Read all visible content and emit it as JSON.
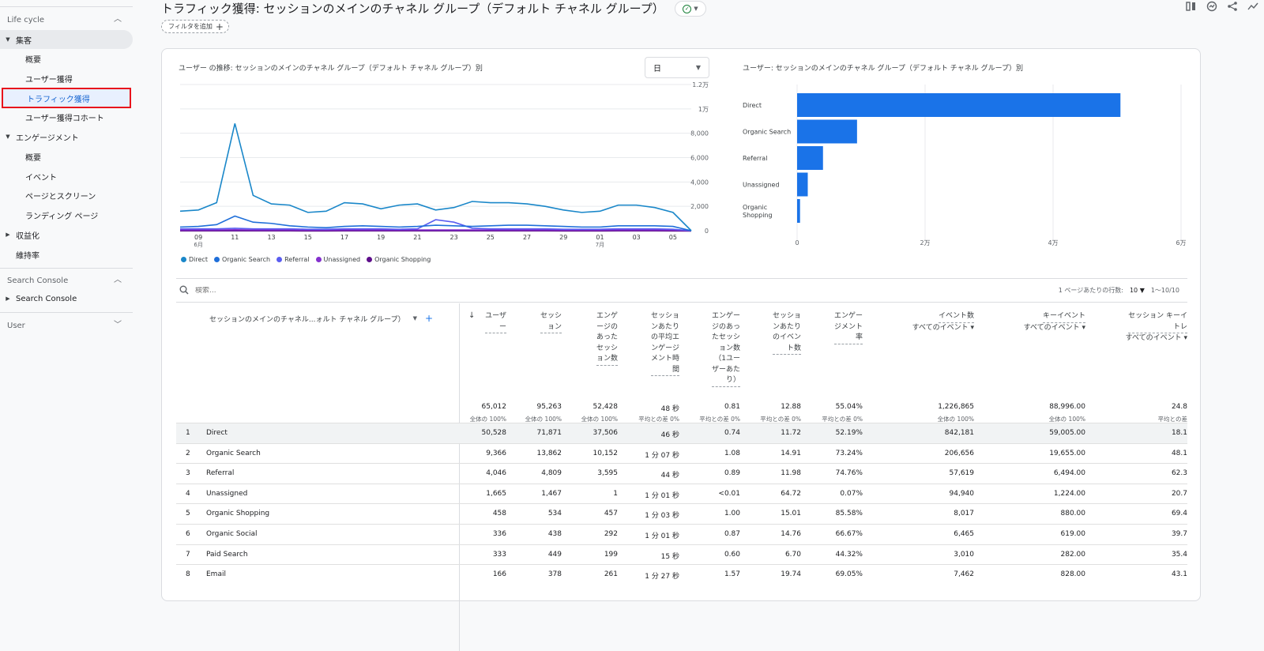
{
  "sidebar": {
    "lifecycle": "Life cycle",
    "acquisition": "集客",
    "acq_items": [
      "概要",
      "ユーザー獲得",
      "トラフィック獲得",
      "ユーザー獲得コホート"
    ],
    "engagement": "エンゲージメント",
    "eng_items": [
      "概要",
      "イベント",
      "ページとスクリーン",
      "ランディング ページ"
    ],
    "monetization": "収益化",
    "retention": "維持率",
    "search_console_section": "Search Console",
    "search_console_item": "Search Console",
    "user_section": "User"
  },
  "header": {
    "title": "トラフィック獲得: セッションのメインのチャネル グループ（デフォルト チャネル グループ）",
    "filter_chip": "フィルタを追加"
  },
  "line_chart_title": "ユーザー の推移: セッションのメインのチャネル グループ（デフォルト チャネル グループ）別",
  "day_select": "日",
  "bar_chart_title": "ユーザー: セッションのメインのチャネル グループ（デフォルト チャネル グループ）別",
  "chart_data": [
    {
      "type": "line",
      "x_tick_labels": [
        "09",
        "11",
        "13",
        "15",
        "17",
        "19",
        "21",
        "23",
        "25",
        "27",
        "29",
        "01",
        "03",
        "05"
      ],
      "x_sub_labels": {
        "09": "6月",
        "01": "7月"
      },
      "y_tick_labels": [
        "1.2万",
        "1万",
        "8,000",
        "6,000",
        "4,000",
        "2,000",
        "0"
      ],
      "ylim": [
        0,
        12000
      ],
      "series": [
        {
          "name": "Direct",
          "color": "#1a87c9",
          "values": [
            1600,
            1700,
            2300,
            8800,
            2900,
            2200,
            2100,
            1500,
            1600,
            2300,
            2200,
            1800,
            2100,
            2200,
            1700,
            1900,
            2400,
            2300,
            2300,
            2200,
            2000,
            1700,
            1500,
            1600,
            2100,
            2100,
            1900,
            1500,
            0
          ]
        },
        {
          "name": "Organic Search",
          "color": "#1f6fd9",
          "values": [
            300,
            350,
            500,
            1200,
            700,
            600,
            400,
            300,
            250,
            350,
            400,
            350,
            300,
            350,
            450,
            400,
            350,
            400,
            450,
            450,
            400,
            350,
            300,
            300,
            400,
            400,
            400,
            350,
            0
          ]
        },
        {
          "name": "Referral",
          "color": "#5a5df0",
          "values": [
            150,
            150,
            150,
            200,
            150,
            150,
            150,
            120,
            120,
            150,
            150,
            150,
            120,
            150,
            900,
            700,
            200,
            150,
            150,
            150,
            150,
            120,
            120,
            120,
            150,
            150,
            150,
            120,
            0
          ]
        },
        {
          "name": "Unassigned",
          "color": "#8430ce",
          "values": [
            60,
            60,
            60,
            80,
            60,
            60,
            60,
            50,
            50,
            60,
            60,
            60,
            60,
            60,
            60,
            60,
            60,
            60,
            60,
            60,
            60,
            50,
            50,
            50,
            60,
            60,
            60,
            50,
            0
          ]
        },
        {
          "name": "Organic Shopping",
          "color": "#5e0e8b",
          "values": [
            15,
            15,
            15,
            20,
            15,
            15,
            15,
            10,
            10,
            15,
            15,
            15,
            15,
            15,
            15,
            15,
            15,
            15,
            15,
            15,
            15,
            10,
            10,
            10,
            15,
            15,
            15,
            10,
            0
          ]
        }
      ]
    },
    {
      "type": "bar",
      "orientation": "horizontal",
      "categories": [
        "Direct",
        "Organic Search",
        "Referral",
        "Unassigned",
        "Organic Shopping"
      ],
      "values": [
        50528,
        9366,
        4046,
        1665,
        458
      ],
      "x_tick_labels": [
        "0",
        "2万",
        "4万",
        "6万"
      ],
      "xlim": [
        0,
        60000
      ],
      "color": "#1a73e8"
    }
  ],
  "table": {
    "search_placeholder": "検索...",
    "rows_per_page_label": "1 ページあたりの行数:",
    "rows_per_page_value": "10",
    "pagination": "1〜10/10",
    "dimension_header": "セッションのメインのチャネル...ォルト チャネル グループ）",
    "metric_headers": [
      {
        "label": "ユーザ\nー",
        "sub": ""
      },
      {
        "label": "セッシ\nョン",
        "sub": ""
      },
      {
        "label": "エンゲ\nージの\nあった\nセッシ\nョン数",
        "sub": ""
      },
      {
        "label": "セッショ\nンあたり\nの平均エ\nンゲージ\nメント時\n間",
        "sub": ""
      },
      {
        "label": "エンゲー\nジのあっ\nたセッシ\nョン数\n（1ユー\nザーあた\nり）",
        "sub": ""
      },
      {
        "label": "セッショ\nンあたり\nのイベン\nト数",
        "sub": ""
      },
      {
        "label": "エンゲー\nジメント\n率",
        "sub": ""
      },
      {
        "label": "イベント数",
        "sub": "すべてのイベント"
      },
      {
        "label": "キーイベント",
        "sub": "すべてのイベント"
      },
      {
        "label": "セッション キーイ\nトレ",
        "sub": "すべてのイベント"
      }
    ],
    "totals": [
      "65,012",
      "95,263",
      "52,428",
      "48 秒",
      "0.81",
      "12.88",
      "55.04%",
      "1,226,865",
      "88,996.00",
      "24.8"
    ],
    "totals_sub": [
      "全体の 100%",
      "全体の 100%",
      "全体の 100%",
      "平均との差 0%",
      "平均との差 0%",
      "平均との差 0%",
      "平均との差 0%",
      "全体の 100%",
      "全体の 100%",
      "平均との差"
    ],
    "rows": [
      {
        "idx": "1",
        "name": "Direct",
        "v": [
          "50,528",
          "71,871",
          "37,506",
          "46 秒",
          "0.74",
          "11.72",
          "52.19%",
          "842,181",
          "59,005.00",
          "18.1"
        ]
      },
      {
        "idx": "2",
        "name": "Organic Search",
        "v": [
          "9,366",
          "13,862",
          "10,152",
          "1 分 07 秒",
          "1.08",
          "14.91",
          "73.24%",
          "206,656",
          "19,655.00",
          "48.1"
        ]
      },
      {
        "idx": "3",
        "name": "Referral",
        "v": [
          "4,046",
          "4,809",
          "3,595",
          "44 秒",
          "0.89",
          "11.98",
          "74.76%",
          "57,619",
          "6,494.00",
          "62.3"
        ]
      },
      {
        "idx": "4",
        "name": "Unassigned",
        "v": [
          "1,665",
          "1,467",
          "1",
          "1 分 01 秒",
          "<0.01",
          "64.72",
          "0.07%",
          "94,940",
          "1,224.00",
          "20.7"
        ]
      },
      {
        "idx": "5",
        "name": "Organic Shopping",
        "v": [
          "458",
          "534",
          "457",
          "1 分 03 秒",
          "1.00",
          "15.01",
          "85.58%",
          "8,017",
          "880.00",
          "69.4"
        ]
      },
      {
        "idx": "6",
        "name": "Organic Social",
        "v": [
          "336",
          "438",
          "292",
          "1 分 01 秒",
          "0.87",
          "14.76",
          "66.67%",
          "6,465",
          "619.00",
          "39.7"
        ]
      },
      {
        "idx": "7",
        "name": "Paid Search",
        "v": [
          "333",
          "449",
          "199",
          "15 秒",
          "0.60",
          "6.70",
          "44.32%",
          "3,010",
          "282.00",
          "35.4"
        ]
      },
      {
        "idx": "8",
        "name": "Email",
        "v": [
          "166",
          "378",
          "261",
          "1 分 27 秒",
          "1.57",
          "19.74",
          "69.05%",
          "7,462",
          "828.00",
          "43.1"
        ]
      }
    ]
  }
}
